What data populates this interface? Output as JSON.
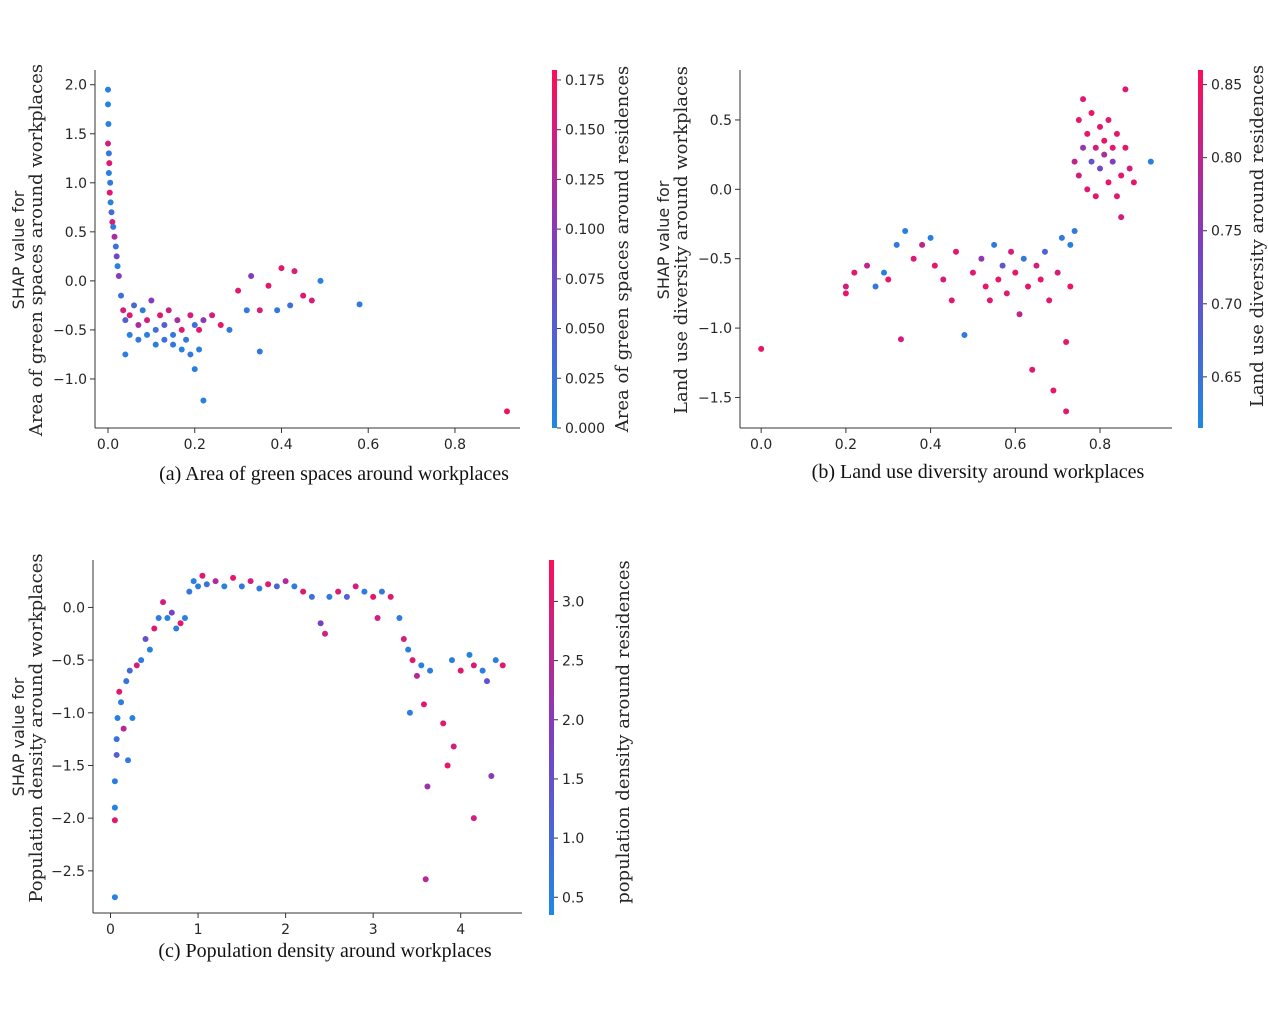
{
  "colors": {
    "low": "#1e88e5",
    "mid": "#7b3fc4",
    "high": "#ff0d57",
    "axis": "#333333"
  },
  "chart_data": [
    {
      "type": "scatter",
      "caption": "(a)  Area of green spaces around workplaces",
      "ylabel_line1": "SHAP value for",
      "ylabel_line2": "Area of green spaces around workplaces",
      "colorbar_label": "Area of green spaces around residences",
      "xlim": [
        -0.03,
        0.95
      ],
      "ylim": [
        -1.5,
        2.15
      ],
      "xticks": [
        0.0,
        0.2,
        0.4,
        0.6,
        0.8
      ],
      "xtick_labels": [
        "0.0",
        "0.2",
        "0.4",
        "0.6",
        "0.8"
      ],
      "yticks": [
        -1.0,
        -0.5,
        0.0,
        0.5,
        1.0,
        1.5,
        2.0
      ],
      "ytick_labels": [
        "−1.0",
        "−0.5",
        "0.0",
        "0.5",
        "1.0",
        "1.5",
        "2.0"
      ],
      "clim": [
        0.0,
        0.18
      ],
      "cticks": [
        0.0,
        0.025,
        0.05,
        0.075,
        0.1,
        0.125,
        0.15,
        0.175
      ],
      "ctick_labels": [
        "0.000",
        "0.025",
        "0.050",
        "0.075",
        "0.100",
        "0.125",
        "0.150",
        "0.175"
      ],
      "points": [
        [
          0.0,
          1.95,
          0.01
        ],
        [
          0.0,
          1.8,
          0.005
        ],
        [
          0.001,
          1.6,
          0.01
        ],
        [
          0.0,
          1.4,
          0.15
        ],
        [
          0.002,
          1.3,
          0.02
        ],
        [
          0.003,
          1.2,
          0.16
        ],
        [
          0.002,
          1.1,
          0.01
        ],
        [
          0.005,
          1.0,
          0.02
        ],
        [
          0.004,
          0.9,
          0.16
        ],
        [
          0.006,
          0.8,
          0.01
        ],
        [
          0.008,
          0.7,
          0.04
        ],
        [
          0.01,
          0.6,
          0.15
        ],
        [
          0.012,
          0.55,
          0.02
        ],
        [
          0.015,
          0.45,
          0.12
        ],
        [
          0.018,
          0.35,
          0.03
        ],
        [
          0.02,
          0.25,
          0.08
        ],
        [
          0.022,
          0.15,
          0.01
        ],
        [
          0.025,
          0.05,
          0.1
        ],
        [
          0.03,
          -0.15,
          0.03
        ],
        [
          0.035,
          -0.3,
          0.15
        ],
        [
          0.04,
          -0.4,
          0.05
        ],
        [
          0.05,
          -0.35,
          0.16
        ],
        [
          0.06,
          -0.25,
          0.04
        ],
        [
          0.07,
          -0.45,
          0.12
        ],
        [
          0.08,
          -0.3,
          0.02
        ],
        [
          0.09,
          -0.4,
          0.15
        ],
        [
          0.1,
          -0.2,
          0.1
        ],
        [
          0.11,
          -0.5,
          0.03
        ],
        [
          0.12,
          -0.35,
          0.16
        ],
        [
          0.13,
          -0.45,
          0.05
        ],
        [
          0.14,
          -0.3,
          0.14
        ],
        [
          0.15,
          -0.55,
          0.02
        ],
        [
          0.16,
          -0.4,
          0.12
        ],
        [
          0.17,
          -0.5,
          0.16
        ],
        [
          0.18,
          -0.6,
          0.02
        ],
        [
          0.19,
          -0.35,
          0.15
        ],
        [
          0.2,
          -0.45,
          0.03
        ],
        [
          0.21,
          -0.5,
          0.16
        ],
        [
          0.22,
          -0.4,
          0.1
        ],
        [
          0.05,
          -0.55,
          0.01
        ],
        [
          0.07,
          -0.6,
          0.02
        ],
        [
          0.09,
          -0.55,
          0.01
        ],
        [
          0.11,
          -0.65,
          0.01
        ],
        [
          0.13,
          -0.6,
          0.03
        ],
        [
          0.15,
          -0.65,
          0.02
        ],
        [
          0.17,
          -0.7,
          0.01
        ],
        [
          0.19,
          -0.75,
          0.02
        ],
        [
          0.21,
          -0.7,
          0.01
        ],
        [
          0.04,
          -0.75,
          0.01
        ],
        [
          0.2,
          -0.9,
          0.01
        ],
        [
          0.22,
          -1.22,
          0.01
        ],
        [
          0.24,
          -0.35,
          0.15
        ],
        [
          0.26,
          -0.45,
          0.16
        ],
        [
          0.28,
          -0.5,
          0.02
        ],
        [
          0.3,
          -0.1,
          0.16
        ],
        [
          0.32,
          -0.3,
          0.02
        ],
        [
          0.33,
          0.05,
          0.1
        ],
        [
          0.35,
          -0.3,
          0.15
        ],
        [
          0.35,
          -0.72,
          0.02
        ],
        [
          0.37,
          -0.05,
          0.16
        ],
        [
          0.39,
          -0.3,
          0.02
        ],
        [
          0.4,
          0.13,
          0.16
        ],
        [
          0.42,
          -0.25,
          0.03
        ],
        [
          0.43,
          0.1,
          0.15
        ],
        [
          0.45,
          -0.15,
          0.16
        ],
        [
          0.47,
          -0.2,
          0.15
        ],
        [
          0.49,
          0.0,
          0.01
        ],
        [
          0.58,
          -0.24,
          0.02
        ],
        [
          0.92,
          -1.33,
          0.17
        ]
      ]
    },
    {
      "type": "scatter",
      "caption": "(b)  Land use diversity around workplaces",
      "ylabel_line1": "SHAP value for",
      "ylabel_line2": "Land use diversity around workplaces",
      "colorbar_label": "Land use diversity around residences",
      "xlim": [
        -0.05,
        0.97
      ],
      "ylim": [
        -1.72,
        0.86
      ],
      "xticks": [
        0.0,
        0.2,
        0.4,
        0.6,
        0.8
      ],
      "xtick_labels": [
        "0.0",
        "0.2",
        "0.4",
        "0.6",
        "0.8"
      ],
      "yticks": [
        -1.5,
        -1.0,
        -0.5,
        0.0,
        0.5
      ],
      "ytick_labels": [
        "−1.5",
        "−1.0",
        "−0.5",
        "0.0",
        "0.5"
      ],
      "clim": [
        0.615,
        0.86
      ],
      "cticks": [
        0.65,
        0.7,
        0.75,
        0.8,
        0.85
      ],
      "ctick_labels": [
        "0.65",
        "0.70",
        "0.75",
        "0.80",
        "0.85"
      ],
      "points": [
        [
          0.0,
          -1.15,
          0.84
        ],
        [
          0.2,
          -0.7,
          0.82
        ],
        [
          0.2,
          -0.75,
          0.84
        ],
        [
          0.22,
          -0.6,
          0.83
        ],
        [
          0.25,
          -0.55,
          0.8
        ],
        [
          0.27,
          -0.7,
          0.64
        ],
        [
          0.29,
          -0.6,
          0.63
        ],
        [
          0.3,
          -0.65,
          0.84
        ],
        [
          0.32,
          -0.4,
          0.64
        ],
        [
          0.33,
          -1.08,
          0.82
        ],
        [
          0.34,
          -0.3,
          0.63
        ],
        [
          0.36,
          -0.5,
          0.83
        ],
        [
          0.38,
          -0.4,
          0.8
        ],
        [
          0.4,
          -0.35,
          0.63
        ],
        [
          0.41,
          -0.55,
          0.84
        ],
        [
          0.43,
          -0.65,
          0.82
        ],
        [
          0.45,
          -0.8,
          0.83
        ],
        [
          0.46,
          -0.45,
          0.84
        ],
        [
          0.48,
          -1.05,
          0.64
        ],
        [
          0.5,
          -0.6,
          0.83
        ],
        [
          0.52,
          -0.5,
          0.76
        ],
        [
          0.53,
          -0.7,
          0.84
        ],
        [
          0.54,
          -0.8,
          0.83
        ],
        [
          0.55,
          -0.4,
          0.64
        ],
        [
          0.56,
          -0.65,
          0.84
        ],
        [
          0.57,
          -0.55,
          0.7
        ],
        [
          0.58,
          -0.75,
          0.83
        ],
        [
          0.59,
          -0.45,
          0.82
        ],
        [
          0.6,
          -0.6,
          0.84
        ],
        [
          0.61,
          -0.9,
          0.8
        ],
        [
          0.62,
          -0.5,
          0.64
        ],
        [
          0.63,
          -0.7,
          0.84
        ],
        [
          0.64,
          -1.3,
          0.83
        ],
        [
          0.65,
          -0.55,
          0.82
        ],
        [
          0.66,
          -0.65,
          0.84
        ],
        [
          0.67,
          -0.45,
          0.68
        ],
        [
          0.68,
          -0.8,
          0.83
        ],
        [
          0.69,
          -1.45,
          0.84
        ],
        [
          0.7,
          -0.6,
          0.82
        ],
        [
          0.71,
          -0.35,
          0.64
        ],
        [
          0.72,
          -1.1,
          0.84
        ],
        [
          0.72,
          -1.6,
          0.83
        ],
        [
          0.73,
          -0.4,
          0.63
        ],
        [
          0.73,
          -0.7,
          0.84
        ],
        [
          0.74,
          -0.3,
          0.64
        ],
        [
          0.74,
          0.2,
          0.8
        ],
        [
          0.75,
          0.5,
          0.84
        ],
        [
          0.75,
          0.1,
          0.82
        ],
        [
          0.76,
          0.65,
          0.83
        ],
        [
          0.76,
          0.3,
          0.76
        ],
        [
          0.77,
          0.4,
          0.84
        ],
        [
          0.77,
          0.0,
          0.83
        ],
        [
          0.78,
          0.2,
          0.7
        ],
        [
          0.78,
          0.55,
          0.84
        ],
        [
          0.79,
          0.3,
          0.82
        ],
        [
          0.79,
          -0.05,
          0.84
        ],
        [
          0.8,
          0.45,
          0.83
        ],
        [
          0.8,
          0.15,
          0.72
        ],
        [
          0.81,
          0.35,
          0.84
        ],
        [
          0.81,
          0.25,
          0.78
        ],
        [
          0.82,
          0.5,
          0.83
        ],
        [
          0.82,
          0.05,
          0.84
        ],
        [
          0.83,
          0.3,
          0.84
        ],
        [
          0.83,
          0.2,
          0.74
        ],
        [
          0.84,
          -0.05,
          0.83
        ],
        [
          0.84,
          0.4,
          0.84
        ],
        [
          0.85,
          -0.2,
          0.82
        ],
        [
          0.85,
          0.1,
          0.84
        ],
        [
          0.86,
          0.72,
          0.83
        ],
        [
          0.86,
          0.3,
          0.84
        ],
        [
          0.87,
          0.15,
          0.82
        ],
        [
          0.88,
          0.05,
          0.84
        ],
        [
          0.92,
          0.2,
          0.63
        ]
      ]
    },
    {
      "type": "scatter",
      "caption": "(c)  Population density around workplaces",
      "ylabel_line1": "SHAP value for",
      "ylabel_line2": "Population density around workplaces",
      "colorbar_label": "population density around residences",
      "xlim": [
        -0.2,
        4.7
      ],
      "ylim": [
        -2.9,
        0.45
      ],
      "xticks": [
        0,
        1,
        2,
        3,
        4
      ],
      "xtick_labels": [
        "0",
        "1",
        "2",
        "3",
        "4"
      ],
      "yticks": [
        -2.5,
        -2.0,
        -1.5,
        -1.0,
        -0.5,
        0.0
      ],
      "ytick_labels": [
        "−2.5",
        "−2.0",
        "−1.5",
        "−1.0",
        "−0.5",
        "0.0"
      ],
      "clim": [
        0.35,
        3.35
      ],
      "cticks": [
        0.5,
        1.0,
        1.5,
        2.0,
        2.5,
        3.0
      ],
      "ctick_labels": [
        "0.5",
        "1.0",
        "1.5",
        "2.0",
        "2.5",
        "3.0"
      ],
      "points": [
        [
          0.05,
          -2.75,
          0.5
        ],
        [
          0.05,
          -2.02,
          3.0
        ],
        [
          0.05,
          -1.9,
          0.5
        ],
        [
          0.05,
          -1.65,
          0.6
        ],
        [
          0.07,
          -1.4,
          1.2
        ],
        [
          0.07,
          -1.25,
          0.8
        ],
        [
          0.08,
          -1.05,
          0.5
        ],
        [
          0.1,
          -0.8,
          3.0
        ],
        [
          0.12,
          -0.9,
          0.6
        ],
        [
          0.15,
          -1.15,
          2.5
        ],
        [
          0.18,
          -0.7,
          0.8
        ],
        [
          0.2,
          -1.45,
          0.6
        ],
        [
          0.22,
          -0.6,
          1.0
        ],
        [
          0.25,
          -1.05,
          0.5
        ],
        [
          0.3,
          -0.55,
          2.8
        ],
        [
          0.35,
          -0.5,
          0.6
        ],
        [
          0.4,
          -0.3,
          1.5
        ],
        [
          0.45,
          -0.4,
          0.5
        ],
        [
          0.5,
          -0.2,
          3.0
        ],
        [
          0.55,
          -0.1,
          0.6
        ],
        [
          0.6,
          0.05,
          2.8
        ],
        [
          0.65,
          -0.1,
          0.5
        ],
        [
          0.7,
          -0.05,
          1.8
        ],
        [
          0.75,
          -0.2,
          0.6
        ],
        [
          0.8,
          -0.15,
          3.1
        ],
        [
          0.85,
          -0.1,
          0.5
        ],
        [
          0.9,
          0.15,
          0.7
        ],
        [
          0.95,
          0.25,
          0.5
        ],
        [
          1.0,
          0.2,
          0.6
        ],
        [
          1.05,
          0.3,
          3.0
        ],
        [
          1.1,
          0.22,
          0.8
        ],
        [
          1.2,
          0.25,
          2.5
        ],
        [
          1.3,
          0.2,
          0.5
        ],
        [
          1.4,
          0.28,
          3.1
        ],
        [
          1.5,
          0.2,
          0.7
        ],
        [
          1.6,
          0.25,
          2.8
        ],
        [
          1.7,
          0.18,
          0.6
        ],
        [
          1.8,
          0.22,
          3.0
        ],
        [
          1.9,
          0.2,
          1.0
        ],
        [
          2.0,
          0.25,
          2.5
        ],
        [
          2.1,
          0.2,
          0.6
        ],
        [
          2.2,
          0.15,
          3.0
        ],
        [
          2.3,
          0.1,
          0.8
        ],
        [
          2.4,
          -0.15,
          1.8
        ],
        [
          2.45,
          -0.25,
          2.8
        ],
        [
          2.5,
          0.1,
          0.6
        ],
        [
          2.6,
          0.15,
          3.0
        ],
        [
          2.7,
          0.1,
          1.2
        ],
        [
          2.8,
          0.2,
          2.8
        ],
        [
          2.9,
          0.15,
          0.6
        ],
        [
          3.0,
          0.1,
          3.1
        ],
        [
          3.05,
          -0.1,
          2.8
        ],
        [
          3.1,
          0.15,
          0.7
        ],
        [
          3.2,
          0.1,
          3.0
        ],
        [
          3.3,
          -0.1,
          0.6
        ],
        [
          3.35,
          -0.3,
          2.8
        ],
        [
          3.4,
          -0.4,
          0.5
        ],
        [
          3.42,
          -1.0,
          0.6
        ],
        [
          3.45,
          -0.5,
          3.0
        ],
        [
          3.5,
          -0.65,
          2.5
        ],
        [
          3.55,
          -0.55,
          0.5
        ],
        [
          3.58,
          -0.92,
          3.0
        ],
        [
          3.6,
          -2.58,
          2.5
        ],
        [
          3.62,
          -1.7,
          2.2
        ],
        [
          3.65,
          -0.6,
          0.6
        ],
        [
          3.8,
          -1.1,
          3.0
        ],
        [
          3.85,
          -1.5,
          3.1
        ],
        [
          3.9,
          -0.5,
          0.6
        ],
        [
          3.92,
          -1.32,
          2.8
        ],
        [
          4.0,
          -0.6,
          3.0
        ],
        [
          4.1,
          -0.45,
          0.5
        ],
        [
          4.15,
          -0.55,
          3.0
        ],
        [
          4.15,
          -2.0,
          2.8
        ],
        [
          4.25,
          -0.6,
          0.6
        ],
        [
          4.3,
          -0.7,
          1.5
        ],
        [
          4.35,
          -1.6,
          2.0
        ],
        [
          4.4,
          -0.5,
          0.6
        ],
        [
          4.48,
          -0.55,
          3.0
        ]
      ]
    }
  ]
}
